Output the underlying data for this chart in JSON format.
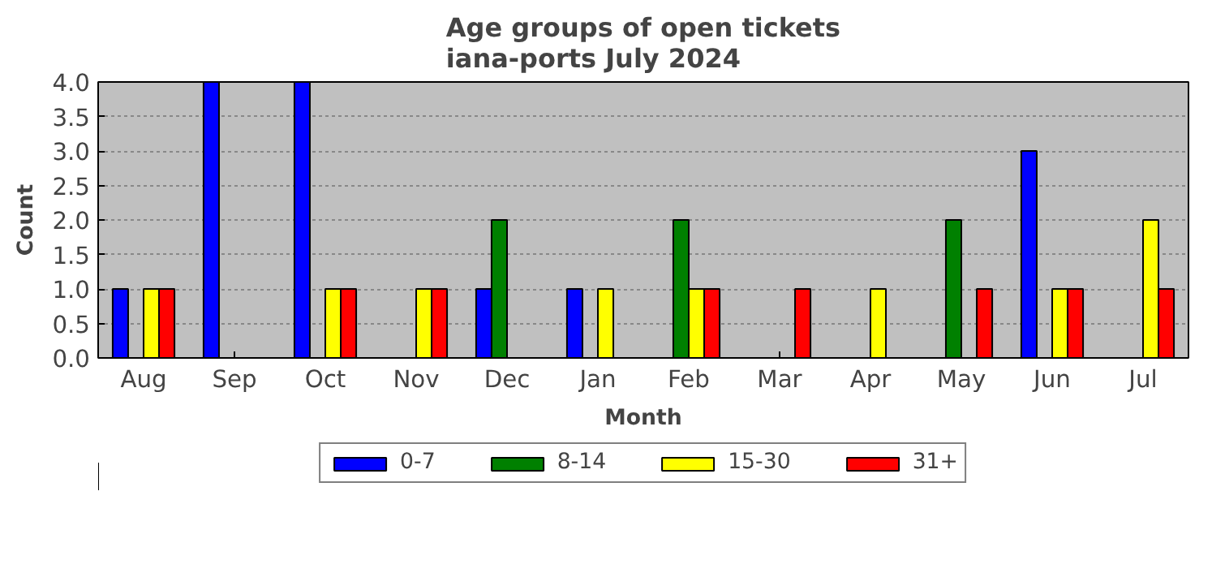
{
  "chart_data": {
    "type": "bar",
    "title": "Age groups of open tickets\niana-ports July 2024",
    "xlabel": "Month",
    "ylabel": "Count",
    "categories": [
      "Aug",
      "Sep",
      "Oct",
      "Nov",
      "Dec",
      "Jan",
      "Feb",
      "Mar",
      "Apr",
      "May",
      "Jun",
      "Jul"
    ],
    "series": [
      {
        "name": "0-7",
        "color": "#0000ff",
        "values": [
          1,
          4,
          4,
          0,
          1,
          1,
          0,
          0,
          0,
          0,
          3,
          0
        ]
      },
      {
        "name": "8-14",
        "color": "#008000",
        "values": [
          0,
          0,
          0,
          0,
          2,
          0,
          2,
          0,
          0,
          2,
          0,
          0
        ]
      },
      {
        "name": "15-30",
        "color": "#ffff00",
        "values": [
          1,
          0,
          1,
          1,
          0,
          1,
          1,
          0,
          1,
          0,
          1,
          2
        ]
      },
      {
        "name": "31+",
        "color": "#ff0000",
        "values": [
          1,
          0,
          1,
          1,
          0,
          0,
          1,
          1,
          0,
          1,
          1,
          1
        ]
      }
    ],
    "ylim": [
      0,
      4
    ],
    "yticks": [
      {
        "value": 0,
        "label": "0.0"
      },
      {
        "value": 0.5,
        "label": "0.5"
      },
      {
        "value": 1,
        "label": "1.0"
      },
      {
        "value": 1.5,
        "label": "1.5"
      },
      {
        "value": 2,
        "label": "2.0"
      },
      {
        "value": 2.5,
        "label": "2.5"
      },
      {
        "value": 3,
        "label": "3.0"
      },
      {
        "value": 3.5,
        "label": "3.5"
      },
      {
        "value": 4,
        "label": "4.0"
      }
    ],
    "grid": "y",
    "legend": "bottom"
  }
}
